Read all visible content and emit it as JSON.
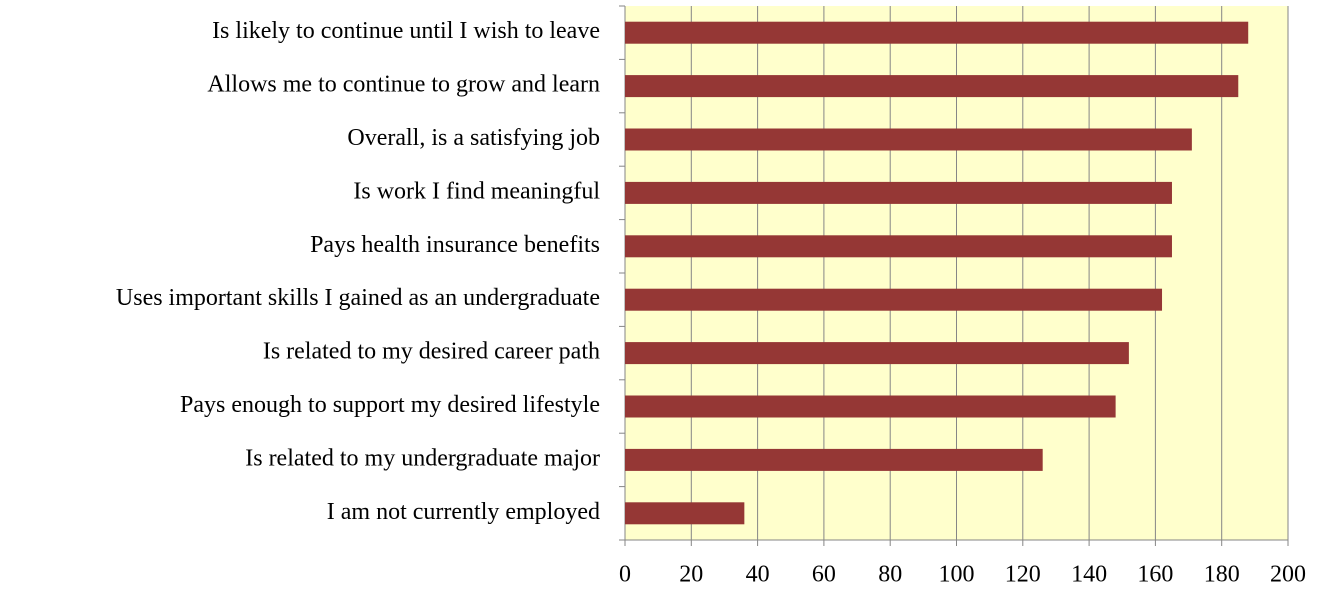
{
  "chart_data": {
    "type": "bar",
    "orientation": "horizontal",
    "categories": [
      "Is likely to continue until I wish to leave",
      "Allows me to continue to grow and learn",
      "Overall, is a satisfying job",
      "Is work I find meaningful",
      "Pays health insurance benefits",
      "Uses important skills I gained as an undergraduate",
      "Is related to my desired career path",
      "Pays enough to support my desired lifestyle",
      "Is related to my undergraduate major",
      "I am not currently employed"
    ],
    "values": [
      188,
      185,
      171,
      165,
      165,
      162,
      152,
      148,
      126,
      36
    ],
    "color": "#953735",
    "background": "#ffffcc",
    "xlim": [
      0,
      200
    ],
    "xticks": [
      0,
      20,
      40,
      60,
      80,
      100,
      120,
      140,
      160,
      180,
      200
    ],
    "grid": true
  }
}
